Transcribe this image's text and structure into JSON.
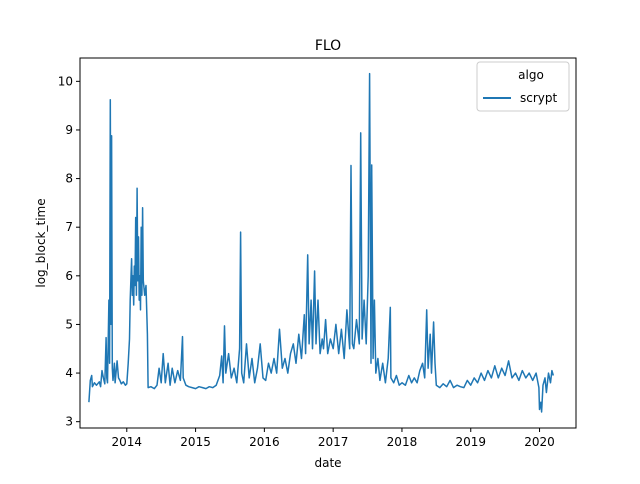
{
  "chart_data": {
    "type": "line",
    "title": "FLO",
    "xlabel": "date",
    "ylabel": "log_block_time",
    "xlim": [
      2013.32,
      2020.53
    ],
    "ylim": [
      2.87,
      10.48
    ],
    "x_ticks": [
      {
        "value": 2014,
        "label": "2014"
      },
      {
        "value": 2015,
        "label": "2015"
      },
      {
        "value": 2016,
        "label": "2016"
      },
      {
        "value": 2017,
        "label": "2017"
      },
      {
        "value": 2018,
        "label": "2018"
      },
      {
        "value": 2019,
        "label": "2019"
      },
      {
        "value": 2020,
        "label": "2020"
      }
    ],
    "y_ticks": [
      {
        "value": 3,
        "label": "3"
      },
      {
        "value": 4,
        "label": "4"
      },
      {
        "value": 5,
        "label": "5"
      },
      {
        "value": 6,
        "label": "6"
      },
      {
        "value": 7,
        "label": "7"
      },
      {
        "value": 8,
        "label": "8"
      },
      {
        "value": 9,
        "label": "9"
      },
      {
        "value": 10,
        "label": "10"
      }
    ],
    "grid": false,
    "legend": {
      "title": "algo",
      "placement": "top-right"
    },
    "series": [
      {
        "name": "scrypt",
        "color": "#1f77b4",
        "points": [
          [
            2013.45,
            3.4
          ],
          [
            2013.47,
            3.85
          ],
          [
            2013.49,
            3.95
          ],
          [
            2013.5,
            3.72
          ],
          [
            2013.53,
            3.8
          ],
          [
            2013.56,
            3.75
          ],
          [
            2013.6,
            3.82
          ],
          [
            2013.62,
            3.72
          ],
          [
            2013.64,
            4.05
          ],
          [
            2013.66,
            3.9
          ],
          [
            2013.68,
            3.78
          ],
          [
            2013.7,
            4.73
          ],
          [
            2013.71,
            3.9
          ],
          [
            2013.72,
            3.8
          ],
          [
            2013.74,
            5.5
          ],
          [
            2013.75,
            4.2
          ],
          [
            2013.76,
            9.62
          ],
          [
            2013.77,
            5.0
          ],
          [
            2013.78,
            8.88
          ],
          [
            2013.79,
            4.1
          ],
          [
            2013.8,
            3.85
          ],
          [
            2013.82,
            4.2
          ],
          [
            2013.83,
            3.8
          ],
          [
            2013.86,
            4.25
          ],
          [
            2013.88,
            3.9
          ],
          [
            2013.9,
            3.85
          ],
          [
            2013.92,
            3.78
          ],
          [
            2013.95,
            3.82
          ],
          [
            2013.98,
            3.75
          ],
          [
            2014.0,
            3.78
          ],
          [
            2014.02,
            4.2
          ],
          [
            2014.04,
            4.7
          ],
          [
            2014.05,
            5.5
          ],
          [
            2014.07,
            6.35
          ],
          [
            2014.08,
            5.6
          ],
          [
            2014.09,
            6.0
          ],
          [
            2014.1,
            5.4
          ],
          [
            2014.11,
            6.2
          ],
          [
            2014.12,
            5.8
          ],
          [
            2014.13,
            7.2
          ],
          [
            2014.14,
            5.6
          ],
          [
            2014.15,
            7.8
          ],
          [
            2014.16,
            5.9
          ],
          [
            2014.17,
            6.8
          ],
          [
            2014.18,
            5.5
          ],
          [
            2014.19,
            6.0
          ],
          [
            2014.2,
            5.3
          ],
          [
            2014.21,
            7.0
          ],
          [
            2014.22,
            5.6
          ],
          [
            2014.23,
            7.4
          ],
          [
            2014.24,
            5.9
          ],
          [
            2014.26,
            5.6
          ],
          [
            2014.28,
            5.8
          ],
          [
            2014.3,
            4.8
          ],
          [
            2014.31,
            3.7
          ],
          [
            2014.35,
            3.72
          ],
          [
            2014.4,
            3.68
          ],
          [
            2014.44,
            3.75
          ],
          [
            2014.47,
            4.1
          ],
          [
            2014.5,
            3.8
          ],
          [
            2014.53,
            4.4
          ],
          [
            2014.56,
            3.8
          ],
          [
            2014.6,
            4.2
          ],
          [
            2014.63,
            3.75
          ],
          [
            2014.66,
            4.1
          ],
          [
            2014.7,
            3.8
          ],
          [
            2014.74,
            4.05
          ],
          [
            2014.78,
            3.85
          ],
          [
            2014.81,
            4.75
          ],
          [
            2014.82,
            3.9
          ],
          [
            2014.86,
            3.75
          ],
          [
            2014.9,
            3.72
          ],
          [
            2014.95,
            3.7
          ],
          [
            2015.0,
            3.68
          ],
          [
            2015.05,
            3.72
          ],
          [
            2015.1,
            3.7
          ],
          [
            2015.15,
            3.68
          ],
          [
            2015.2,
            3.72
          ],
          [
            2015.25,
            3.7
          ],
          [
            2015.3,
            3.75
          ],
          [
            2015.35,
            3.95
          ],
          [
            2015.38,
            4.35
          ],
          [
            2015.4,
            3.8
          ],
          [
            2015.42,
            4.97
          ],
          [
            2015.44,
            4.0
          ],
          [
            2015.48,
            4.4
          ],
          [
            2015.52,
            3.9
          ],
          [
            2015.56,
            4.1
          ],
          [
            2015.6,
            3.8
          ],
          [
            2015.64,
            4.5
          ],
          [
            2015.655,
            6.9
          ],
          [
            2015.67,
            4.0
          ],
          [
            2015.7,
            3.8
          ],
          [
            2015.74,
            4.6
          ],
          [
            2015.78,
            3.9
          ],
          [
            2015.82,
            4.3
          ],
          [
            2015.86,
            3.8
          ],
          [
            2015.9,
            4.1
          ],
          [
            2015.94,
            4.6
          ],
          [
            2015.98,
            3.9
          ],
          [
            2016.02,
            3.85
          ],
          [
            2016.06,
            4.2
          ],
          [
            2016.1,
            4.0
          ],
          [
            2016.14,
            4.3
          ],
          [
            2016.18,
            4.0
          ],
          [
            2016.22,
            4.9
          ],
          [
            2016.26,
            4.1
          ],
          [
            2016.3,
            4.3
          ],
          [
            2016.34,
            4.0
          ],
          [
            2016.38,
            4.4
          ],
          [
            2016.42,
            4.6
          ],
          [
            2016.46,
            4.2
          ],
          [
            2016.5,
            4.8
          ],
          [
            2016.54,
            4.3
          ],
          [
            2016.58,
            5.2
          ],
          [
            2016.6,
            4.4
          ],
          [
            2016.63,
            6.43
          ],
          [
            2016.65,
            4.6
          ],
          [
            2016.68,
            5.5
          ],
          [
            2016.7,
            4.5
          ],
          [
            2016.73,
            6.1
          ],
          [
            2016.75,
            4.6
          ],
          [
            2016.78,
            5.5
          ],
          [
            2016.81,
            4.4
          ],
          [
            2016.84,
            4.7
          ],
          [
            2016.86,
            4.5
          ],
          [
            2016.89,
            5.1
          ],
          [
            2016.92,
            4.4
          ],
          [
            2016.96,
            4.7
          ],
          [
            2017.0,
            4.5
          ],
          [
            2017.04,
            5.0
          ],
          [
            2017.08,
            4.4
          ],
          [
            2017.12,
            4.9
          ],
          [
            2017.16,
            4.3
          ],
          [
            2017.2,
            5.3
          ],
          [
            2017.24,
            4.5
          ],
          [
            2017.26,
            8.27
          ],
          [
            2017.28,
            4.6
          ],
          [
            2017.3,
            4.5
          ],
          [
            2017.34,
            5.1
          ],
          [
            2017.38,
            4.6
          ],
          [
            2017.4,
            8.94
          ],
          [
            2017.42,
            4.7
          ],
          [
            2017.45,
            5.5
          ],
          [
            2017.48,
            4.6
          ],
          [
            2017.51,
            6.0
          ],
          [
            2017.53,
            10.16
          ],
          [
            2017.55,
            4.2
          ],
          [
            2017.56,
            8.28
          ],
          [
            2017.58,
            4.3
          ],
          [
            2017.6,
            5.5
          ],
          [
            2017.62,
            4.0
          ],
          [
            2017.65,
            4.3
          ],
          [
            2017.68,
            3.85
          ],
          [
            2017.72,
            4.2
          ],
          [
            2017.76,
            3.8
          ],
          [
            2017.8,
            4.3
          ],
          [
            2017.83,
            5.35
          ],
          [
            2017.84,
            3.9
          ],
          [
            2017.88,
            3.8
          ],
          [
            2017.92,
            3.95
          ],
          [
            2017.96,
            3.75
          ],
          [
            2018.0,
            3.8
          ],
          [
            2018.05,
            3.75
          ],
          [
            2018.1,
            3.95
          ],
          [
            2018.14,
            3.8
          ],
          [
            2018.18,
            3.9
          ],
          [
            2018.22,
            3.8
          ],
          [
            2018.26,
            4.05
          ],
          [
            2018.3,
            4.2
          ],
          [
            2018.33,
            3.9
          ],
          [
            2018.36,
            5.3
          ],
          [
            2018.38,
            4.1
          ],
          [
            2018.41,
            4.8
          ],
          [
            2018.43,
            4.0
          ],
          [
            2018.46,
            5.05
          ],
          [
            2018.48,
            4.2
          ],
          [
            2018.5,
            3.75
          ],
          [
            2018.55,
            3.7
          ],
          [
            2018.6,
            3.78
          ],
          [
            2018.65,
            3.72
          ],
          [
            2018.7,
            3.85
          ],
          [
            2018.75,
            3.7
          ],
          [
            2018.8,
            3.75
          ],
          [
            2018.85,
            3.72
          ],
          [
            2018.9,
            3.7
          ],
          [
            2018.95,
            3.85
          ],
          [
            2019.0,
            3.75
          ],
          [
            2019.05,
            3.9
          ],
          [
            2019.1,
            3.8
          ],
          [
            2019.15,
            4.0
          ],
          [
            2019.2,
            3.85
          ],
          [
            2019.25,
            4.05
          ],
          [
            2019.3,
            3.9
          ],
          [
            2019.35,
            4.15
          ],
          [
            2019.4,
            3.9
          ],
          [
            2019.45,
            4.1
          ],
          [
            2019.5,
            3.95
          ],
          [
            2019.55,
            4.25
          ],
          [
            2019.6,
            3.9
          ],
          [
            2019.65,
            4.0
          ],
          [
            2019.7,
            3.85
          ],
          [
            2019.75,
            4.05
          ],
          [
            2019.8,
            3.9
          ],
          [
            2019.85,
            4.0
          ],
          [
            2019.9,
            3.85
          ],
          [
            2019.95,
            4.0
          ],
          [
            2019.99,
            3.7
          ],
          [
            2020.0,
            3.25
          ],
          [
            2020.02,
            3.4
          ],
          [
            2020.03,
            3.2
          ],
          [
            2020.05,
            3.75
          ],
          [
            2020.08,
            3.9
          ],
          [
            2020.1,
            3.6
          ],
          [
            2020.13,
            4.0
          ],
          [
            2020.16,
            3.8
          ],
          [
            2020.18,
            4.05
          ],
          [
            2020.2,
            3.95
          ]
        ]
      }
    ]
  }
}
